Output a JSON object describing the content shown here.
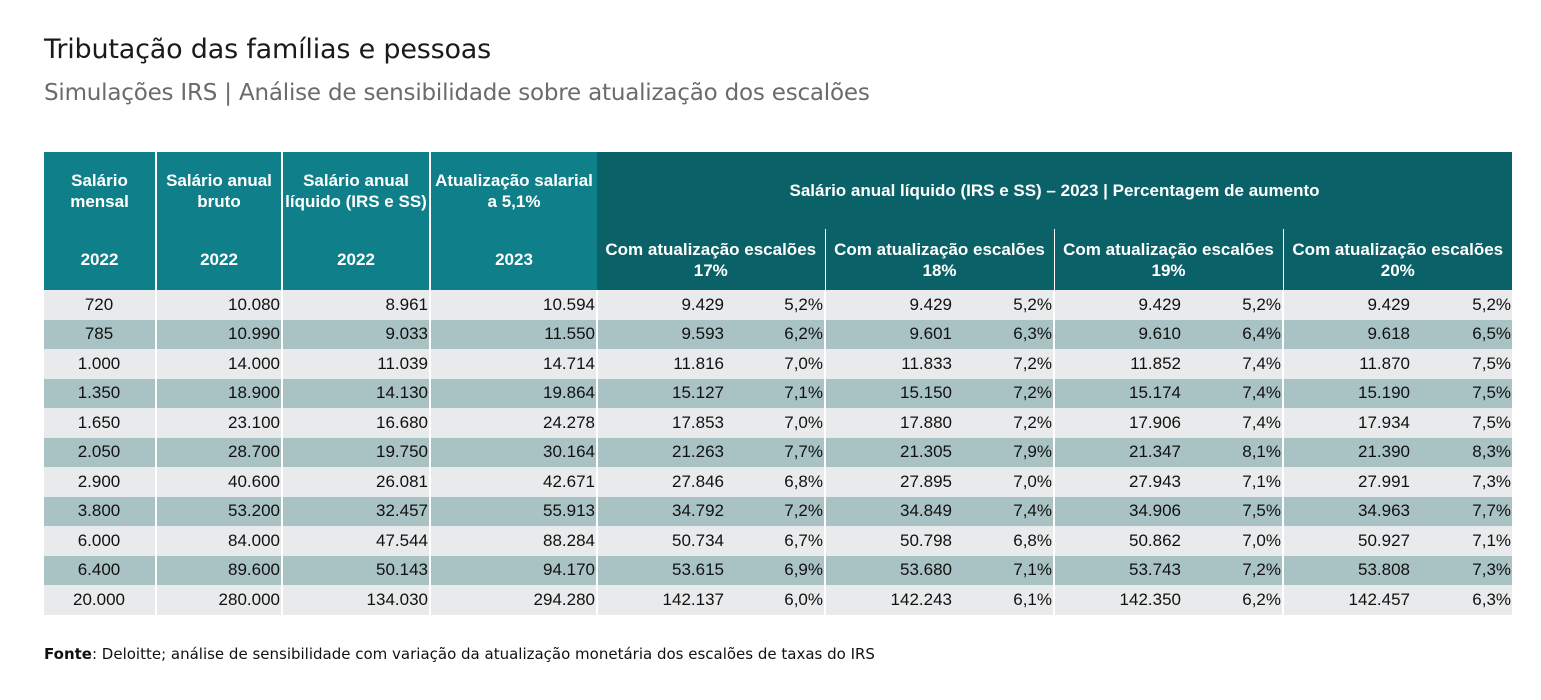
{
  "title": "Tributação das famílias e pessoas",
  "subtitle": "Simulações IRS | Análise de sensibilidade sobre atualização dos escalões",
  "table": {
    "left_headers": [
      {
        "label": "Salário mensal",
        "year": "2022"
      },
      {
        "label": "Salário anual bruto",
        "year": "2022"
      },
      {
        "label": "Salário anual líquido (IRS e SS)",
        "year": "2022"
      },
      {
        "label": "Atualização salarial a 5,1%",
        "year": "2023"
      }
    ],
    "group_header": "Salário anual líquido (IRS e SS) – 2023 | Percentagem de aumento",
    "sub_headers": [
      "Com atualização escalões 17%",
      "Com atualização escalões 18%",
      "Com atualização escalões 19%",
      "Com atualização escalões 20%"
    ],
    "rows": [
      [
        "720",
        "10.080",
        "8.961",
        "10.594",
        "9.429",
        "5,2%",
        "9.429",
        "5,2%",
        "9.429",
        "5,2%",
        "9.429",
        "5,2%"
      ],
      [
        "785",
        "10.990",
        "9.033",
        "11.550",
        "9.593",
        "6,2%",
        "9.601",
        "6,3%",
        "9.610",
        "6,4%",
        "9.618",
        "6,5%"
      ],
      [
        "1.000",
        "14.000",
        "11.039",
        "14.714",
        "11.816",
        "7,0%",
        "11.833",
        "7,2%",
        "11.852",
        "7,4%",
        "11.870",
        "7,5%"
      ],
      [
        "1.350",
        "18.900",
        "14.130",
        "19.864",
        "15.127",
        "7,1%",
        "15.150",
        "7,2%",
        "15.174",
        "7,4%",
        "15.190",
        "7,5%"
      ],
      [
        "1.650",
        "23.100",
        "16.680",
        "24.278",
        "17.853",
        "7,0%",
        "17.880",
        "7,2%",
        "17.906",
        "7,4%",
        "17.934",
        "7,5%"
      ],
      [
        "2.050",
        "28.700",
        "19.750",
        "30.164",
        "21.263",
        "7,7%",
        "21.305",
        "7,9%",
        "21.347",
        "8,1%",
        "21.390",
        "8,3%"
      ],
      [
        "2.900",
        "40.600",
        "26.081",
        "42.671",
        "27.846",
        "6,8%",
        "27.895",
        "7,0%",
        "27.943",
        "7,1%",
        "27.991",
        "7,3%"
      ],
      [
        "3.800",
        "53.200",
        "32.457",
        "55.913",
        "34.792",
        "7,2%",
        "34.849",
        "7,4%",
        "34.906",
        "7,5%",
        "34.963",
        "7,7%"
      ],
      [
        "6.000",
        "84.000",
        "47.544",
        "88.284",
        "50.734",
        "6,7%",
        "50.798",
        "6,8%",
        "50.862",
        "7,0%",
        "50.927",
        "7,1%"
      ],
      [
        "6.400",
        "89.600",
        "50.143",
        "94.170",
        "53.615",
        "6,9%",
        "53.680",
        "7,1%",
        "53.743",
        "7,2%",
        "53.808",
        "7,3%"
      ],
      [
        "20.000",
        "280.000",
        "134.030",
        "294.280",
        "142.137",
        "6,0%",
        "142.243",
        "6,1%",
        "142.350",
        "6,2%",
        "142.457",
        "6,3%"
      ]
    ]
  },
  "source": {
    "label": "Fonte",
    "text": ": Deloitte; análise de sensibilidade com variação da atualização monetária dos escalões de taxas do IRS"
  },
  "colors": {
    "header_teal": "#0f7f89",
    "header_dark_teal": "#0b6168",
    "row_light": "#e9eaeb",
    "row_dark": "#a9c2c4"
  }
}
